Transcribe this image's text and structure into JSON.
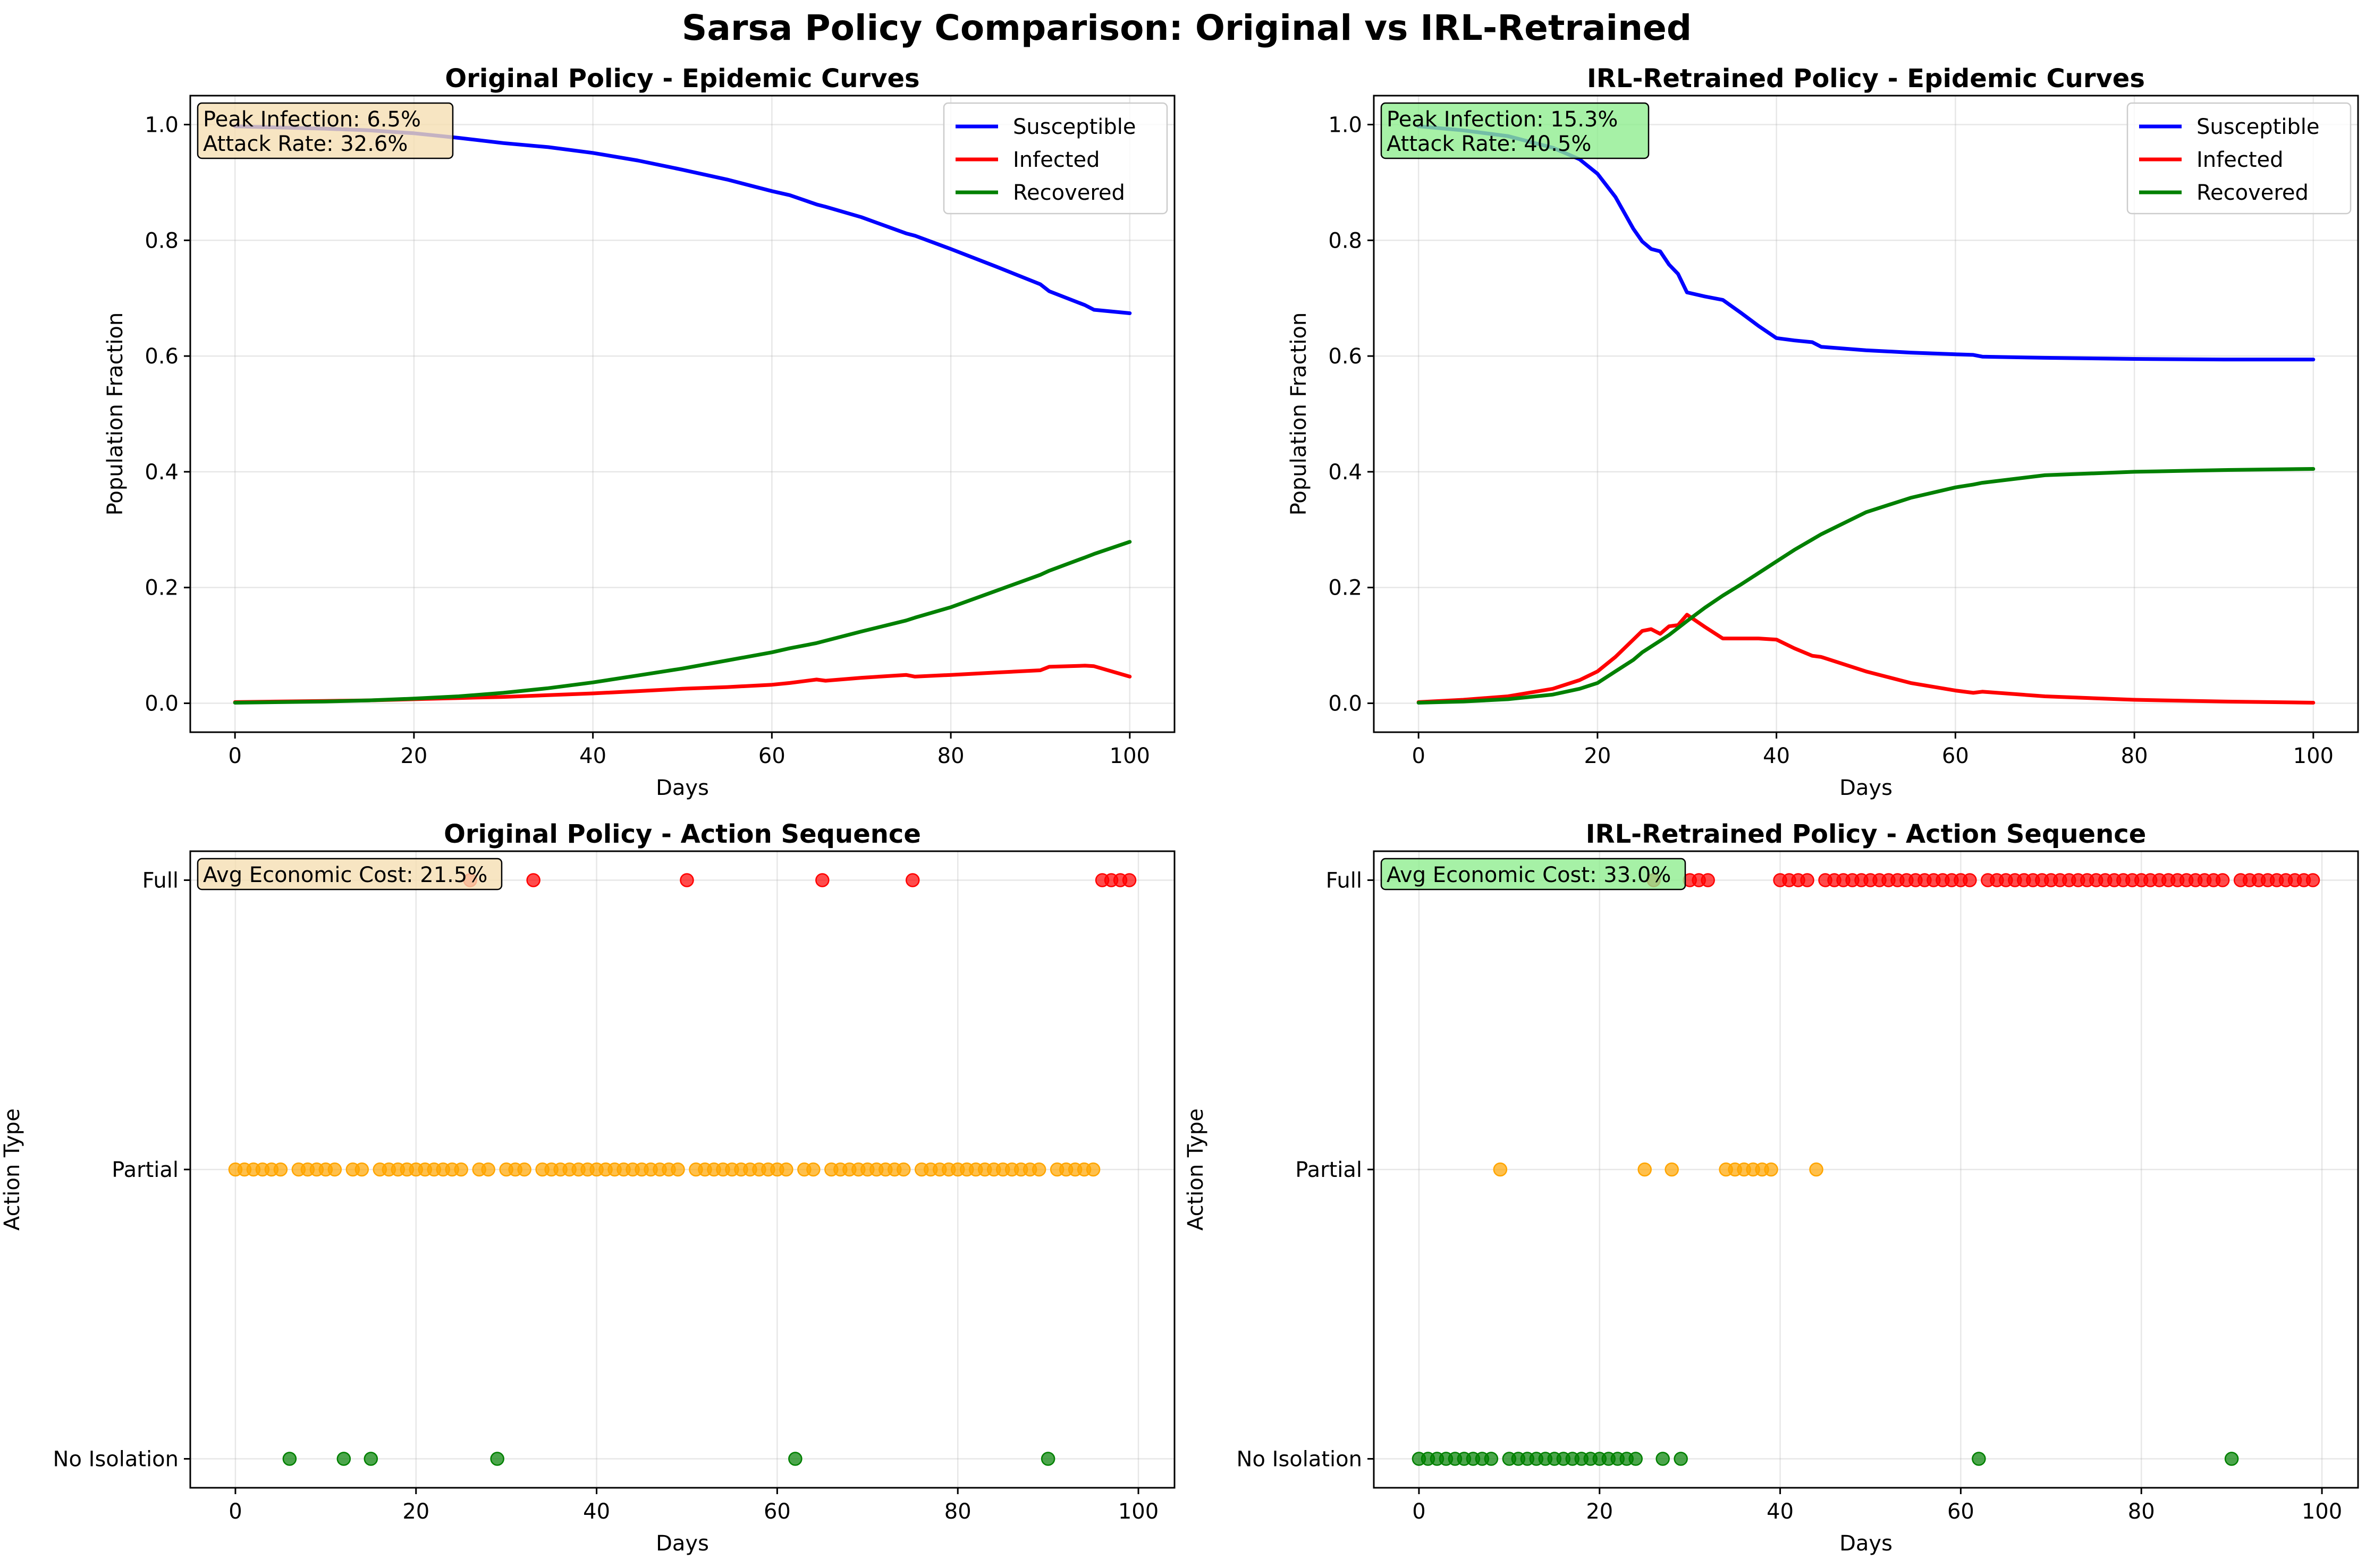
{
  "title": "Sarsa Policy Comparison: Original vs IRL-Retrained",
  "colors": {
    "susceptible": "#0000ff",
    "infected": "#ff0000",
    "recovered": "#008000",
    "full": "#ff0000",
    "partial": "#ffa500",
    "none": "#008000",
    "box_original": "#f5deb3",
    "box_irl": "#90ee90"
  },
  "chart_data": [
    {
      "type": "line",
      "title": "Original Policy - Epidemic Curves",
      "xlabel": "Days",
      "ylabel": "Population Fraction",
      "xlim": [
        -5,
        105
      ],
      "ylim": [
        -0.05,
        1.05
      ],
      "xticks": [
        0,
        20,
        40,
        60,
        80,
        100
      ],
      "yticks": [
        0.0,
        0.2,
        0.4,
        0.6,
        0.8,
        1.0
      ],
      "ytick_labels": [
        "0.0",
        "0.2",
        "0.4",
        "0.6",
        "0.8",
        "1.0"
      ],
      "grid": true,
      "legend": "top-right",
      "annotation": {
        "lines": [
          "Peak Infection: 6.5%",
          "Attack Rate: 32.6%"
        ],
        "position": "top-left"
      },
      "x": [
        0,
        5,
        10,
        15,
        20,
        25,
        30,
        35,
        40,
        45,
        50,
        55,
        60,
        62,
        65,
        66,
        70,
        75,
        76,
        80,
        85,
        90,
        91,
        95,
        96,
        100
      ],
      "series": [
        {
          "name": "Susceptible",
          "color": "#0000ff",
          "values": [
            0.997,
            0.995,
            0.993,
            0.99,
            0.985,
            0.977,
            0.968,
            0.961,
            0.951,
            0.938,
            0.922,
            0.905,
            0.885,
            0.878,
            0.862,
            0.858,
            0.84,
            0.812,
            0.808,
            0.785,
            0.755,
            0.724,
            0.712,
            0.688,
            0.68,
            0.674
          ]
        },
        {
          "name": "Infected",
          "color": "#ff0000",
          "values": [
            0.002,
            0.003,
            0.004,
            0.005,
            0.007,
            0.009,
            0.011,
            0.014,
            0.017,
            0.021,
            0.025,
            0.028,
            0.032,
            0.035,
            0.041,
            0.039,
            0.044,
            0.049,
            0.046,
            0.049,
            0.053,
            0.057,
            0.063,
            0.065,
            0.064,
            0.046
          ]
        },
        {
          "name": "Recovered",
          "color": "#008000",
          "values": [
            0.001,
            0.002,
            0.003,
            0.005,
            0.008,
            0.012,
            0.018,
            0.026,
            0.036,
            0.048,
            0.06,
            0.074,
            0.088,
            0.095,
            0.104,
            0.108,
            0.124,
            0.143,
            0.148,
            0.166,
            0.194,
            0.222,
            0.229,
            0.252,
            0.258,
            0.279
          ]
        }
      ]
    },
    {
      "type": "line",
      "title": "IRL-Retrained Policy - Epidemic Curves",
      "xlabel": "Days",
      "ylabel": "Population Fraction",
      "xlim": [
        -5,
        105
      ],
      "ylim": [
        -0.05,
        1.05
      ],
      "xticks": [
        0,
        20,
        40,
        60,
        80,
        100
      ],
      "yticks": [
        0.0,
        0.2,
        0.4,
        0.6,
        0.8,
        1.0
      ],
      "ytick_labels": [
        "0.0",
        "0.2",
        "0.4",
        "0.6",
        "0.8",
        "1.0"
      ],
      "grid": true,
      "legend": "top-right",
      "annotation": {
        "lines": [
          "Peak Infection: 15.3%",
          "Attack Rate: 40.5%"
        ],
        "position": "top-left"
      },
      "x": [
        0,
        5,
        10,
        15,
        18,
        20,
        22,
        24,
        25,
        26,
        27,
        28,
        29,
        30,
        32,
        34,
        36,
        38,
        40,
        42,
        44,
        45,
        50,
        55,
        60,
        62,
        63,
        70,
        80,
        90,
        100
      ],
      "series": [
        {
          "name": "Susceptible",
          "color": "#0000ff",
          "values": [
            0.997,
            0.99,
            0.98,
            0.96,
            0.94,
            0.915,
            0.875,
            0.82,
            0.798,
            0.785,
            0.781,
            0.758,
            0.742,
            0.71,
            0.703,
            0.697,
            0.675,
            0.652,
            0.631,
            0.627,
            0.624,
            0.616,
            0.61,
            0.606,
            0.603,
            0.602,
            0.599,
            0.597,
            0.595,
            0.594,
            0.594
          ]
        },
        {
          "name": "Infected",
          "color": "#ff0000",
          "values": [
            0.002,
            0.006,
            0.012,
            0.025,
            0.04,
            0.055,
            0.08,
            0.11,
            0.125,
            0.128,
            0.12,
            0.133,
            0.135,
            0.153,
            0.132,
            0.112,
            0.112,
            0.112,
            0.11,
            0.095,
            0.082,
            0.08,
            0.055,
            0.035,
            0.022,
            0.018,
            0.02,
            0.012,
            0.006,
            0.003,
            0.001
          ]
        },
        {
          "name": "Recovered",
          "color": "#008000",
          "values": [
            0.001,
            0.003,
            0.007,
            0.015,
            0.025,
            0.035,
            0.055,
            0.075,
            0.088,
            0.098,
            0.108,
            0.118,
            0.13,
            0.142,
            0.165,
            0.186,
            0.205,
            0.225,
            0.245,
            0.265,
            0.283,
            0.292,
            0.33,
            0.355,
            0.373,
            0.378,
            0.381,
            0.394,
            0.4,
            0.403,
            0.405
          ]
        }
      ]
    },
    {
      "type": "scatter",
      "title": "Original Policy - Action Sequence",
      "xlabel": "Days",
      "ylabel": "Action Type",
      "xlim": [
        -5,
        104
      ],
      "ylim": [
        -0.1,
        2.1
      ],
      "xticks": [
        0,
        20,
        40,
        60,
        80,
        100
      ],
      "yticks": [
        0,
        1,
        2
      ],
      "ytick_labels": [
        "No Isolation",
        "Partial",
        "Full"
      ],
      "grid": true,
      "annotation": {
        "lines": [
          "Avg Economic Cost: 21.5%"
        ],
        "position": "top-left"
      },
      "series": [
        {
          "name": "Full",
          "level": 2,
          "color": "#ff0000",
          "x": [
            26,
            33,
            50,
            65,
            75,
            96,
            97,
            98,
            99
          ]
        },
        {
          "name": "Partial",
          "level": 1,
          "color": "#ffa500",
          "x": [
            0,
            1,
            2,
            3,
            4,
            5,
            7,
            8,
            9,
            10,
            11,
            13,
            14,
            16,
            17,
            18,
            19,
            20,
            21,
            22,
            23,
            24,
            25,
            27,
            28,
            30,
            31,
            32,
            34,
            35,
            36,
            37,
            38,
            39,
            40,
            41,
            42,
            43,
            44,
            45,
            46,
            47,
            48,
            49,
            51,
            52,
            53,
            54,
            55,
            56,
            57,
            58,
            59,
            60,
            61,
            63,
            64,
            66,
            67,
            68,
            69,
            70,
            71,
            72,
            73,
            74,
            76,
            77,
            78,
            79,
            80,
            81,
            82,
            83,
            84,
            85,
            86,
            87,
            88,
            89,
            91,
            92,
            93,
            94,
            95
          ]
        },
        {
          "name": "No Isolation",
          "level": 0,
          "color": "#008000",
          "x": [
            6,
            12,
            15,
            29,
            62,
            90
          ]
        }
      ]
    },
    {
      "type": "scatter",
      "title": "IRL-Retrained Policy - Action Sequence",
      "xlabel": "Days",
      "ylabel": "Action Type",
      "xlim": [
        -5,
        104
      ],
      "ylim": [
        -0.1,
        2.1
      ],
      "xticks": [
        0,
        20,
        40,
        60,
        80,
        100
      ],
      "yticks": [
        0,
        1,
        2
      ],
      "ytick_labels": [
        "No Isolation",
        "Partial",
        "Full"
      ],
      "grid": true,
      "annotation": {
        "lines": [
          "Avg Economic Cost: 33.0%"
        ],
        "position": "top-left"
      },
      "series": [
        {
          "name": "Full",
          "level": 2,
          "color": "#ff0000",
          "x": [
            26,
            30,
            31,
            32,
            40,
            41,
            42,
            43,
            45,
            46,
            47,
            48,
            49,
            50,
            51,
            52,
            53,
            54,
            55,
            56,
            57,
            58,
            59,
            60,
            61,
            63,
            64,
            65,
            66,
            67,
            68,
            69,
            70,
            71,
            72,
            73,
            74,
            75,
            76,
            77,
            78,
            79,
            80,
            81,
            82,
            83,
            84,
            85,
            86,
            87,
            88,
            89,
            91,
            92,
            93,
            94,
            95,
            96,
            97,
            98,
            99
          ]
        },
        {
          "name": "Partial",
          "level": 1,
          "color": "#ffa500",
          "x": [
            9,
            25,
            28,
            34,
            35,
            36,
            37,
            38,
            39,
            44
          ]
        },
        {
          "name": "No Isolation",
          "level": 0,
          "color": "#008000",
          "x": [
            0,
            1,
            2,
            3,
            4,
            5,
            6,
            7,
            8,
            10,
            11,
            12,
            13,
            14,
            15,
            16,
            17,
            18,
            19,
            20,
            21,
            22,
            23,
            24,
            27,
            29,
            62,
            90
          ]
        }
      ]
    }
  ]
}
